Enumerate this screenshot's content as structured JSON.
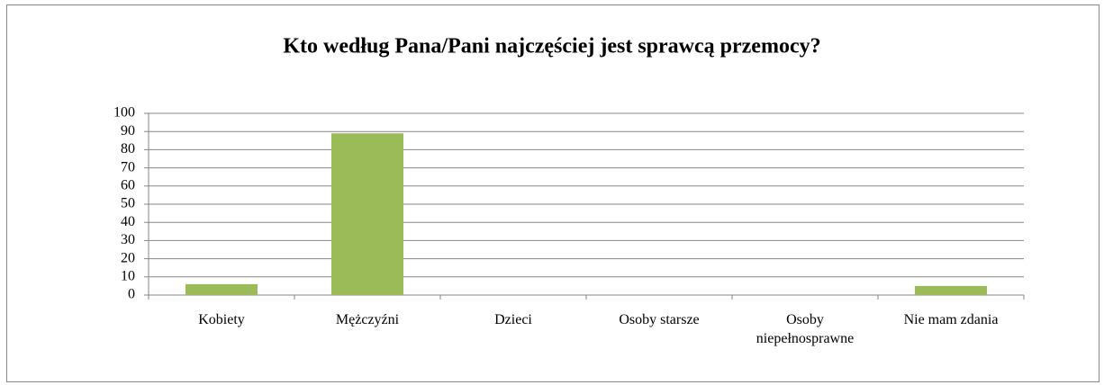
{
  "chart_data": {
    "type": "bar",
    "title": "Kto według Pana/Pani najczęściej jest sprawcą przemocy?",
    "categories": [
      "Kobiety",
      "Mężczyźni",
      "Dzieci",
      "Osoby starsze",
      "Osoby niepełnosprawne",
      "Nie mam zdania"
    ],
    "values": [
      6,
      89,
      0,
      0,
      0,
      5
    ],
    "color": "#9bbb59",
    "ylim": [
      0,
      100
    ],
    "yticks": [
      0,
      10,
      20,
      30,
      40,
      50,
      60,
      70,
      80,
      90,
      100
    ],
    "grid": true
  }
}
